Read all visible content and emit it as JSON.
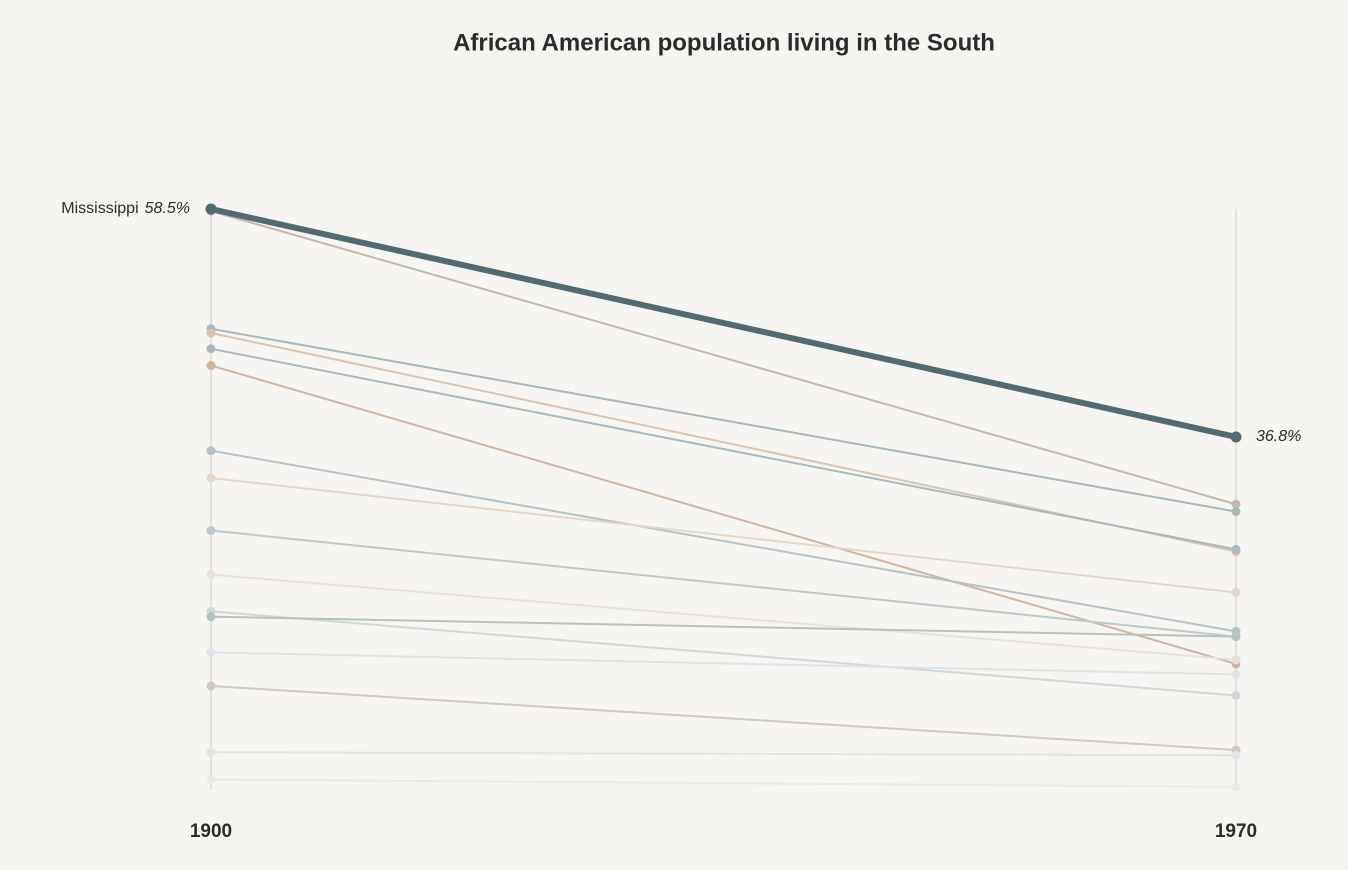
{
  "chart_data": {
    "type": "slope",
    "title": "African American population living in the South",
    "categories": [
      "1900",
      "1970"
    ],
    "ylim": [
      3.2,
      58.5
    ],
    "series": [
      {
        "color": "#c2b8b0",
        "values": [
          58.3,
          30.4
        ]
      },
      {
        "color": "#a8b8bc",
        "values": [
          47.1,
          29.7
        ]
      },
      {
        "color": "#d9c4b2",
        "values": [
          46.7,
          25.9
        ]
      },
      {
        "color": "#a9b9bd",
        "values": [
          45.2,
          26.1
        ]
      },
      {
        "color": "#cfb5a4",
        "values": [
          43.6,
          15.2
        ]
      },
      {
        "color": "#b5c3c6",
        "values": [
          35.5,
          18.3
        ]
      },
      {
        "color": "#e6d6c8",
        "values": [
          32.9,
          22.0
        ]
      },
      {
        "color": "#bccacc",
        "values": [
          27.9,
          17.8
        ]
      },
      {
        "color": "#e8e0da",
        "values": [
          23.7,
          15.6
        ]
      },
      {
        "color": "#cdd7da",
        "values": [
          20.2,
          12.2
        ]
      },
      {
        "color": "#b7c2bb",
        "values": [
          19.7,
          17.8
        ]
      },
      {
        "color": "#dde3e6",
        "values": [
          16.3,
          14.2
        ]
      },
      {
        "color": "#cfc8c3",
        "values": [
          13.1,
          7.0
        ]
      },
      {
        "color": "#dfe5e7",
        "values": [
          6.8,
          6.5
        ]
      },
      {
        "color": "#ebe8e5",
        "values": [
          4.2,
          3.5
        ]
      },
      {
        "name": "Mississippi",
        "color": "#546a72",
        "values": [
          58.5,
          36.8
        ],
        "value_labels": [
          "58.5%",
          "36.8%"
        ]
      }
    ]
  }
}
